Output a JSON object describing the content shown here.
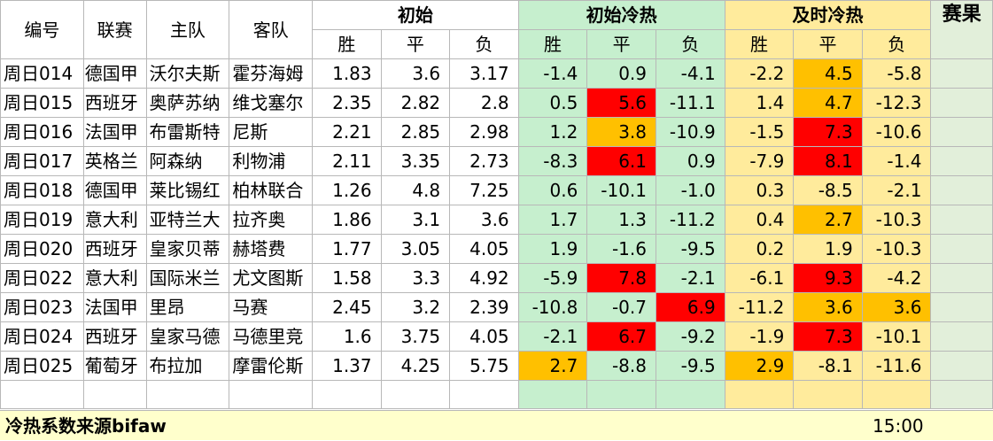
{
  "header": {
    "col_no": "编号",
    "col_league": "联赛",
    "col_home": "主队",
    "col_away": "客队",
    "group_initial": "初始",
    "group_initial_heat": "初始冷热",
    "group_realtime_heat": "及时冷热",
    "col_result": "赛果",
    "sub_win": "胜",
    "sub_draw": "平",
    "sub_loss": "负"
  },
  "colors": {
    "green": "#c6efce",
    "yellow": "#ffeb9c",
    "red": "#ff0000",
    "orange": "#ffc000",
    "result_col": "#e2efda"
  },
  "rows": [
    {
      "no": "周日014",
      "league": "德国甲",
      "home": "沃尔夫斯",
      "away": "霍芬海姆",
      "odds": [
        "1.83",
        "3.6",
        "3.17"
      ],
      "init_heat": [
        "-1.4",
        "0.9",
        "-4.1"
      ],
      "init_hl": [
        "",
        "",
        ""
      ],
      "rt_heat": [
        "-2.2",
        "4.5",
        "-5.8"
      ],
      "rt_hl": [
        "",
        "orange",
        ""
      ]
    },
    {
      "no": "周日015",
      "league": "西班牙",
      "home": "奥萨苏纳",
      "away": "维戈塞尔",
      "odds": [
        "2.35",
        "2.82",
        "2.8"
      ],
      "init_heat": [
        "0.5",
        "5.6",
        "-11.1"
      ],
      "init_hl": [
        "",
        "red",
        ""
      ],
      "rt_heat": [
        "1.4",
        "4.7",
        "-12.3"
      ],
      "rt_hl": [
        "",
        "orange",
        ""
      ]
    },
    {
      "no": "周日016",
      "league": "法国甲",
      "home": "布雷斯特",
      "away": "尼斯",
      "odds": [
        "2.21",
        "2.85",
        "2.98"
      ],
      "init_heat": [
        "1.2",
        "3.8",
        "-10.9"
      ],
      "init_hl": [
        "",
        "orange",
        ""
      ],
      "rt_heat": [
        "-1.5",
        "7.3",
        "-10.6"
      ],
      "rt_hl": [
        "",
        "red",
        ""
      ]
    },
    {
      "no": "周日017",
      "league": "英格兰",
      "home": "阿森纳",
      "away": "利物浦",
      "odds": [
        "2.11",
        "3.35",
        "2.73"
      ],
      "init_heat": [
        "-8.3",
        "6.1",
        "0.9"
      ],
      "init_hl": [
        "",
        "red",
        ""
      ],
      "rt_heat": [
        "-7.9",
        "8.1",
        "-1.4"
      ],
      "rt_hl": [
        "",
        "red",
        ""
      ]
    },
    {
      "no": "周日018",
      "league": "德国甲",
      "home": "莱比锡红",
      "away": "柏林联合",
      "odds": [
        "1.26",
        "4.8",
        "7.25"
      ],
      "init_heat": [
        "0.6",
        "-10.1",
        "-1.0"
      ],
      "init_hl": [
        "",
        "",
        ""
      ],
      "rt_heat": [
        "0.3",
        "-8.5",
        "-2.1"
      ],
      "rt_hl": [
        "",
        "",
        ""
      ]
    },
    {
      "no": "周日019",
      "league": "意大利",
      "home": "亚特兰大",
      "away": "拉齐奥",
      "odds": [
        "1.86",
        "3.1",
        "3.6"
      ],
      "init_heat": [
        "1.7",
        "1.3",
        "-11.2"
      ],
      "init_hl": [
        "",
        "",
        ""
      ],
      "rt_heat": [
        "0.4",
        "2.7",
        "-10.3"
      ],
      "rt_hl": [
        "",
        "orange",
        ""
      ]
    },
    {
      "no": "周日020",
      "league": "西班牙",
      "home": "皇家贝蒂",
      "away": "赫塔费",
      "odds": [
        "1.77",
        "3.05",
        "4.05"
      ],
      "init_heat": [
        "1.9",
        "-1.6",
        "-9.5"
      ],
      "init_hl": [
        "",
        "",
        ""
      ],
      "rt_heat": [
        "0.2",
        "1.9",
        "-10.3"
      ],
      "rt_hl": [
        "",
        "",
        ""
      ]
    },
    {
      "no": "周日022",
      "league": "意大利",
      "home": "国际米兰",
      "away": "尤文图斯",
      "odds": [
        "1.58",
        "3.3",
        "4.92"
      ],
      "init_heat": [
        "-5.9",
        "7.8",
        "-2.1"
      ],
      "init_hl": [
        "",
        "red",
        ""
      ],
      "rt_heat": [
        "-6.1",
        "9.3",
        "-4.2"
      ],
      "rt_hl": [
        "",
        "red",
        ""
      ]
    },
    {
      "no": "周日023",
      "league": "法国甲",
      "home": "里昂",
      "away": "马赛",
      "odds": [
        "2.45",
        "3.2",
        "2.39"
      ],
      "init_heat": [
        "-10.8",
        "-0.7",
        "6.9"
      ],
      "init_hl": [
        "",
        "",
        "red"
      ],
      "rt_heat": [
        "-11.2",
        "3.6",
        "3.6"
      ],
      "rt_hl": [
        "",
        "orange",
        "orange"
      ]
    },
    {
      "no": "周日024",
      "league": "西班牙",
      "home": "皇家马德",
      "away": "马德里竞",
      "odds": [
        "1.6",
        "3.75",
        "4.05"
      ],
      "init_heat": [
        "-2.1",
        "6.7",
        "-9.2"
      ],
      "init_hl": [
        "",
        "red",
        ""
      ],
      "rt_heat": [
        "-1.9",
        "7.3",
        "-10.1"
      ],
      "rt_hl": [
        "",
        "red",
        ""
      ]
    },
    {
      "no": "周日025",
      "league": "葡萄牙",
      "home": "布拉加",
      "away": "摩雷伦斯",
      "odds": [
        "1.37",
        "4.25",
        "5.75"
      ],
      "init_heat": [
        "2.7",
        "-8.8",
        "-9.5"
      ],
      "init_hl": [
        "orange",
        "",
        ""
      ],
      "rt_heat": [
        "2.9",
        "-8.1",
        "-11.6"
      ],
      "rt_hl": [
        "orange",
        "",
        ""
      ]
    }
  ],
  "footer": {
    "source": "冷热系数来源bifaw",
    "time": "15:00"
  }
}
